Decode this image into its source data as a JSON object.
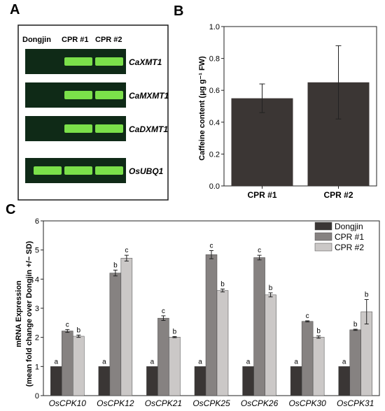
{
  "panel_a": {
    "label": "A",
    "lanes": [
      "Dongjin",
      "CPR #1",
      "CPR #2"
    ],
    "genes": [
      "CaXMT1",
      "CaMXMT1",
      "CaDXMT1",
      "OsUBQ1"
    ],
    "band_present": [
      [
        0,
        1,
        1
      ],
      [
        0,
        1,
        1
      ],
      [
        0,
        1,
        1
      ],
      [
        1,
        1,
        1
      ]
    ],
    "colors": {
      "gel": "#0f2a17",
      "band": "#7be04a",
      "frame": "#1b1b1b"
    }
  },
  "chart_data": [
    {
      "panel": "B",
      "type": "bar",
      "categories": [
        "CPR #1",
        "CPR #2"
      ],
      "values": [
        0.55,
        0.65
      ],
      "errors": [
        0.09,
        0.23
      ],
      "ylabel": "Caffeine content (μg g⁻¹ FW)",
      "ylim": [
        0,
        1.0
      ],
      "yticks": [
        "0.0",
        "0.2",
        "0.4",
        "0.6",
        "0.8",
        "1.0"
      ],
      "color": "#3b3634"
    },
    {
      "panel": "C",
      "type": "bar",
      "categories": [
        "OsCPK10",
        "OsCPK12",
        "OsCPK21",
        "OsCPK25",
        "OsCPK26",
        "OsCPK30",
        "OsCPK31"
      ],
      "series": [
        {
          "name": "Dongjin",
          "values": [
            1,
            1,
            1,
            1,
            1,
            1,
            1
          ],
          "errors": [
            0,
            0,
            0,
            0,
            0,
            0,
            0
          ],
          "letters": [
            "a",
            "a",
            "a",
            "a",
            "a",
            "a",
            "a"
          ],
          "color": "#3a3635"
        },
        {
          "name": "CPR #1",
          "values": [
            2.22,
            4.21,
            2.66,
            4.84,
            4.74,
            2.55,
            2.26
          ],
          "errors": [
            0.05,
            0.1,
            0.08,
            0.14,
            0.08,
            0.02,
            0.02
          ],
          "letters": [
            "c",
            "b",
            "c",
            "c",
            "c",
            "c",
            "b"
          ],
          "color": "#868281"
        },
        {
          "name": "CPR #2",
          "values": [
            2.04,
            4.72,
            2.01,
            3.61,
            3.46,
            2.01,
            2.88
          ],
          "errors": [
            0.04,
            0.1,
            0.02,
            0.05,
            0.07,
            0.04,
            0.42
          ],
          "letters": [
            "b",
            "c",
            "b",
            "b",
            "b",
            "b",
            "b"
          ],
          "color": "#cbc8c7"
        }
      ],
      "ylabel_lines": [
        "mRNA Expression",
        "(mean fold change over Dongjin +/− SD)"
      ],
      "ylim": [
        0,
        6
      ],
      "yticks": [
        "0",
        "1",
        "2",
        "3",
        "4",
        "5",
        "6"
      ],
      "legend_position": "top-right"
    }
  ],
  "labels": {
    "a": "A",
    "b": "B",
    "c": "C"
  }
}
